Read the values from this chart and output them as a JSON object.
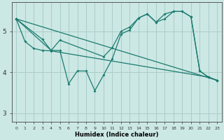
{
  "bg_color": "#cce8e4",
  "grid_color": "#aacccc",
  "line_color": "#1a7a6e",
  "xlabel": "Humidex (Indice chaleur)",
  "xlim": [
    -0.5,
    23.5
  ],
  "ylim": [
    2.8,
    5.7
  ],
  "yticks": [
    3,
    4,
    5
  ],
  "xticks": [
    0,
    1,
    2,
    3,
    4,
    5,
    6,
    7,
    8,
    9,
    10,
    11,
    12,
    13,
    14,
    15,
    16,
    17,
    18,
    19,
    20,
    21,
    22,
    23
  ],
  "line1_x": [
    0,
    1,
    2,
    3,
    4,
    22,
    23
  ],
  "line1_y": [
    5.3,
    4.75,
    4.58,
    4.53,
    4.52,
    3.88,
    3.8
  ],
  "line2_x": [
    0,
    3,
    4,
    5,
    6,
    7,
    8,
    9,
    10,
    11,
    12,
    13,
    14,
    15,
    16,
    17,
    18,
    19,
    20,
    21,
    22,
    23
  ],
  "line2_y": [
    5.3,
    4.8,
    4.53,
    4.53,
    3.72,
    4.03,
    4.03,
    3.55,
    3.93,
    4.33,
    4.93,
    5.03,
    5.32,
    5.42,
    5.22,
    5.3,
    5.48,
    5.48,
    5.35,
    4.03,
    3.88,
    3.8
  ],
  "line3_x": [
    0,
    4,
    5,
    10,
    11,
    12,
    13,
    14,
    15,
    16,
    17,
    18,
    19,
    20,
    21,
    22,
    23
  ],
  "line3_y": [
    5.3,
    4.53,
    4.78,
    4.38,
    4.6,
    5.0,
    5.1,
    5.32,
    5.42,
    5.22,
    5.42,
    5.48,
    5.48,
    5.35,
    4.03,
    3.88,
    3.8
  ],
  "line4_x": [
    0,
    23
  ],
  "line4_y": [
    5.3,
    3.8
  ]
}
